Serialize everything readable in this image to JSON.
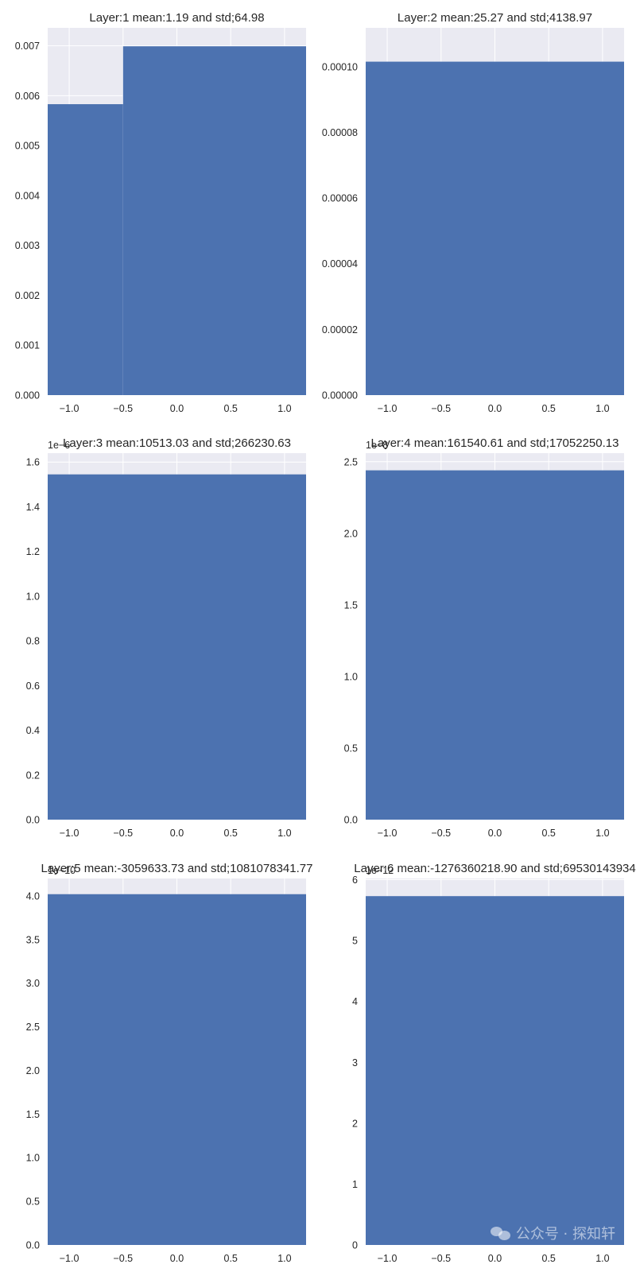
{
  "chart_data": [
    {
      "type": "bar",
      "title": "Layer:1 mean:1.19 and std;64.98",
      "bins": [
        [
          -1.25,
          -0.5,
          0.00583
        ],
        [
          -0.5,
          1.25,
          0.00699
        ]
      ],
      "xlim": [
        -1.2,
        1.2
      ],
      "xticks": [
        -1.0,
        -0.5,
        0.0,
        0.5,
        1.0
      ],
      "xtick_labels": [
        "−1.0",
        "−0.5",
        "0.0",
        "0.5",
        "1.0"
      ],
      "ylim": [
        0,
        0.00736
      ],
      "yticks": [
        0,
        0.001,
        0.002,
        0.003,
        0.004,
        0.005,
        0.006,
        0.007
      ],
      "ytick_labels": [
        "0.000",
        "0.001",
        "0.002",
        "0.003",
        "0.004",
        "0.005",
        "0.006",
        "0.007"
      ],
      "offset_label": "",
      "grid": true
    },
    {
      "type": "bar",
      "title": "Layer:2 mean:25.27 and std;4138.97",
      "bins": [
        [
          -1.25,
          1.25,
          0.0001015
        ]
      ],
      "xlim": [
        -1.2,
        1.2
      ],
      "xticks": [
        -1.0,
        -0.5,
        0.0,
        0.5,
        1.0
      ],
      "xtick_labels": [
        "−1.0",
        "−0.5",
        "0.0",
        "0.5",
        "1.0"
      ],
      "ylim": [
        0,
        0.0001118
      ],
      "yticks": [
        0,
        2e-05,
        4e-05,
        6e-05,
        8e-05,
        0.0001
      ],
      "ytick_labels": [
        "0.00000",
        "0.00002",
        "0.00004",
        "0.00006",
        "0.00008",
        "0.00010"
      ],
      "offset_label": "",
      "grid": true
    },
    {
      "type": "bar",
      "title": "Layer:3 mean:10513.03 and std;266230.63",
      "bins": [
        [
          -1.25,
          1.25,
          1.545
        ]
      ],
      "xlim": [
        -1.2,
        1.2
      ],
      "xticks": [
        -1.0,
        -0.5,
        0.0,
        0.5,
        1.0
      ],
      "xtick_labels": [
        "−1.0",
        "−0.5",
        "0.0",
        "0.5",
        "1.0"
      ],
      "ylim": [
        0,
        1.64
      ],
      "yticks": [
        0,
        0.2,
        0.4,
        0.6,
        0.8,
        1.0,
        1.2,
        1.4,
        1.6
      ],
      "ytick_labels": [
        "0.0",
        "0.2",
        "0.4",
        "0.6",
        "0.8",
        "1.0",
        "1.2",
        "1.4",
        "1.6"
      ],
      "offset_label": "1e−6",
      "grid": true
    },
    {
      "type": "bar",
      "title": "Layer:4 mean:161540.61 and std;17052250.13",
      "bins": [
        [
          -1.25,
          1.25,
          2.44
        ]
      ],
      "xlim": [
        -1.2,
        1.2
      ],
      "xticks": [
        -1.0,
        -0.5,
        0.0,
        0.5,
        1.0
      ],
      "xtick_labels": [
        "−1.0",
        "−0.5",
        "0.0",
        "0.5",
        "1.0"
      ],
      "ylim": [
        0,
        2.56
      ],
      "yticks": [
        0,
        0.5,
        1.0,
        1.5,
        2.0,
        2.5
      ],
      "ytick_labels": [
        "0.0",
        "0.5",
        "1.0",
        "1.5",
        "2.0",
        "2.5"
      ],
      "offset_label": "1e−8",
      "grid": true
    },
    {
      "type": "bar",
      "title": "Layer:5 mean:-3059633.73 and std;1081078341.77",
      "bins": [
        [
          -1.25,
          1.25,
          4.02
        ]
      ],
      "xlim": [
        -1.2,
        1.2
      ],
      "xticks": [
        -1.0,
        -0.5,
        0.0,
        0.5,
        1.0
      ],
      "xtick_labels": [
        "−1.0",
        "−0.5",
        "0.0",
        "0.5",
        "1.0"
      ],
      "ylim": [
        0,
        4.2
      ],
      "yticks": [
        0,
        0.5,
        1.0,
        1.5,
        2.0,
        2.5,
        3.0,
        3.5,
        4.0
      ],
      "ytick_labels": [
        "0.0",
        "0.5",
        "1.0",
        "1.5",
        "2.0",
        "2.5",
        "3.0",
        "3.5",
        "4.0"
      ],
      "offset_label": "1e−10",
      "grid": true
    },
    {
      "type": "bar",
      "title": "Layer:6 mean:-1276360218.90 and std;69530143934",
      "bins": [
        [
          -1.25,
          1.25,
          5.73
        ]
      ],
      "xlim": [
        -1.2,
        1.2
      ],
      "xticks": [
        -1.0,
        -0.5,
        0.0,
        0.5,
        1.0
      ],
      "xtick_labels": [
        "−1.0",
        "−0.5",
        "0.0",
        "0.5",
        "1.0"
      ],
      "ylim": [
        0,
        6.02
      ],
      "yticks": [
        0,
        1,
        2,
        3,
        4,
        5,
        6
      ],
      "ytick_labels": [
        "0",
        "1",
        "2",
        "3",
        "4",
        "5",
        "6"
      ],
      "offset_label": "1e−12",
      "grid": true
    }
  ],
  "colors": {
    "bar": "#4c72b0",
    "panel": "#eaeaf2",
    "grid": "#ffffff",
    "text": "#262626"
  },
  "watermark": {
    "text": "公众号 · 探知轩",
    "icon": "wechat-icon"
  }
}
